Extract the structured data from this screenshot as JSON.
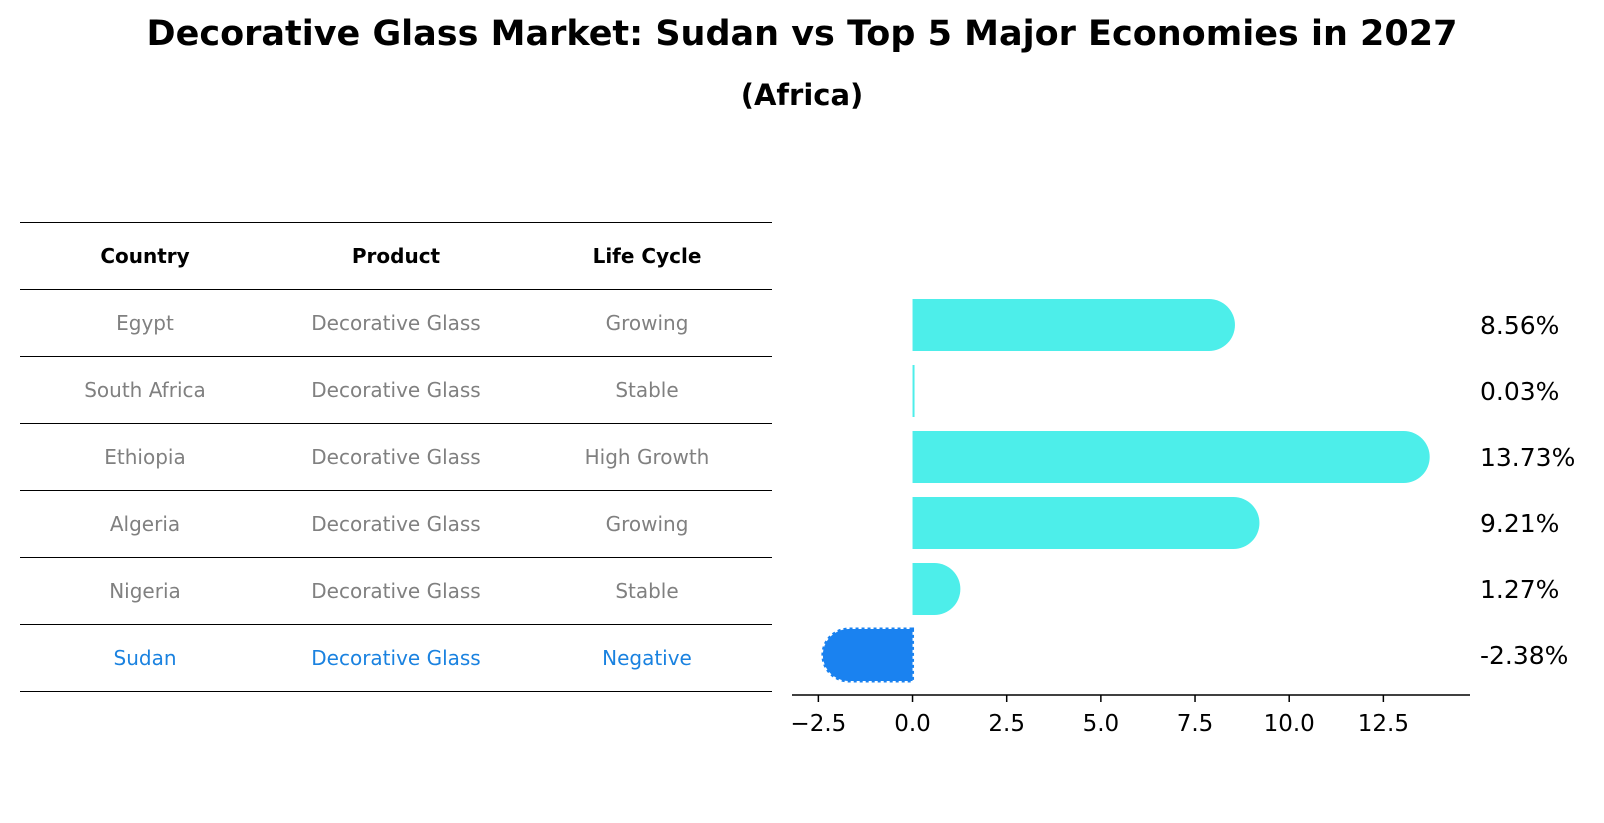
{
  "title": "Decorative Glass Market: Sudan vs Top 5 Major Economies in 2027",
  "subtitle": "(Africa)",
  "table": {
    "headers": [
      "Country",
      "Product",
      "Life Cycle"
    ],
    "rows": [
      {
        "country": "Egypt",
        "product": "Decorative Glass",
        "life_cycle": "Growing"
      },
      {
        "country": "South Africa",
        "product": "Decorative Glass",
        "life_cycle": "Stable"
      },
      {
        "country": "Ethiopia",
        "product": "Decorative Glass",
        "life_cycle": "High Growth"
      },
      {
        "country": "Algeria",
        "product": "Decorative Glass",
        "life_cycle": "Growing"
      },
      {
        "country": "Nigeria",
        "product": "Decorative Glass",
        "life_cycle": "Stable"
      },
      {
        "country": "Sudan",
        "product": "Decorative Glass",
        "life_cycle": "Negative"
      }
    ]
  },
  "colors": {
    "bar": "#4deeea",
    "highlight": "#1a82f0",
    "text_gray": "#808080",
    "text_highlight": "#1a82e0"
  },
  "chart_data": {
    "type": "bar",
    "orientation": "horizontal",
    "categories": [
      "Egypt",
      "South Africa",
      "Ethiopia",
      "Algeria",
      "Nigeria",
      "Sudan"
    ],
    "values": [
      8.56,
      0.03,
      13.73,
      9.21,
      1.27,
      -2.38
    ],
    "value_labels": [
      "8.56%",
      "0.03%",
      "13.73%",
      "9.21%",
      "1.27%",
      "-2.38%"
    ],
    "highlight": "Sudan",
    "xticks": [
      -2.5,
      0.0,
      2.5,
      5.0,
      7.5,
      10.0,
      12.5
    ],
    "xtick_labels": [
      "−2.5",
      "0.0",
      "2.5",
      "5.0",
      "7.5",
      "10.0",
      "12.5"
    ],
    "xlim": [
      -3.2,
      14.8
    ],
    "xlabel": "",
    "ylabel": "",
    "grid": false
  }
}
